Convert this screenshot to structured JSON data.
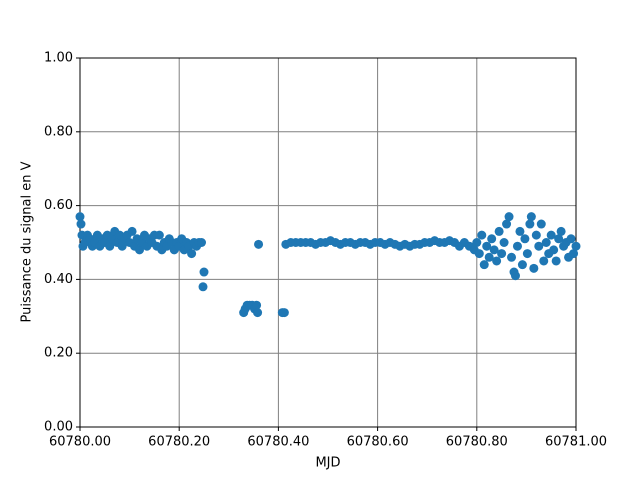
{
  "chart_data": {
    "type": "scatter",
    "xlabel": "MJD",
    "ylabel": "Puissance du signal en V",
    "color": "#1f77b4",
    "grid": true,
    "xlim": [
      60780,
      60781
    ],
    "ylim": [
      0,
      1
    ],
    "xticks": [
      {
        "value": 60780,
        "label": "60780.00"
      },
      {
        "value": 60780.2,
        "label": "60780.20"
      },
      {
        "value": 60780.4,
        "label": "60780.40"
      },
      {
        "value": 60780.6,
        "label": "60780.60"
      },
      {
        "value": 60780.8,
        "label": "60780.80"
      },
      {
        "value": 60781,
        "label": "60781.00"
      }
    ],
    "yticks": [
      {
        "value": 0,
        "label": "0.00"
      },
      {
        "value": 0.2,
        "label": "0.20"
      },
      {
        "value": 0.4,
        "label": "0.40"
      },
      {
        "value": 0.6,
        "label": "0.60"
      },
      {
        "value": 0.8,
        "label": "0.80"
      },
      {
        "value": 1,
        "label": "1.00"
      }
    ],
    "x": [
      60780.0,
      60780.002,
      60780.004,
      60780.006,
      60780.01,
      60780.015,
      60780.02,
      60780.025,
      60780.03,
      60780.035,
      60780.04,
      60780.045,
      60780.05,
      60780.055,
      60780.06,
      60780.065,
      60780.07,
      60780.075,
      60780.08,
      60780.085,
      60780.09,
      60780.095,
      60780.1,
      60780.105,
      60780.11,
      60780.115,
      60780.12,
      60780.125,
      60780.13,
      60780.135,
      60780.14,
      60780.145,
      60780.15,
      60780.155,
      60780.16,
      60780.165,
      60780.17,
      60780.175,
      60780.18,
      60780.185,
      60780.19,
      60780.195,
      60780.2,
      60780.205,
      60780.21,
      60780.215,
      60780.22,
      60780.225,
      60780.23,
      60780.235,
      60780.24,
      60780.245,
      60780.25,
      60780.248,
      60780.33,
      60780.333,
      60780.337,
      60780.342,
      60780.347,
      60780.352,
      60780.356,
      60780.358,
      60780.36,
      60780.408,
      60780.412,
      60780.415,
      60780.425,
      60780.435,
      60780.445,
      60780.455,
      60780.465,
      60780.475,
      60780.485,
      60780.495,
      60780.505,
      60780.515,
      60780.525,
      60780.535,
      60780.545,
      60780.555,
      60780.565,
      60780.575,
      60780.585,
      60780.595,
      60780.605,
      60780.615,
      60780.625,
      60780.635,
      60780.645,
      60780.655,
      60780.665,
      60780.675,
      60780.685,
      60780.695,
      60780.705,
      60780.715,
      60780.725,
      60780.735,
      60780.745,
      60780.755,
      60780.765,
      60780.775,
      60780.785,
      60780.795,
      60780.8,
      60780.805,
      60780.81,
      60780.815,
      60780.82,
      60780.825,
      60780.83,
      60780.835,
      60780.84,
      60780.845,
      60780.85,
      60780.855,
      60780.86,
      60780.865,
      60780.87,
      60780.875,
      60780.878,
      60780.882,
      60780.887,
      60780.892,
      60780.897,
      60780.902,
      60780.907,
      60780.91,
      60780.915,
      60780.92,
      60780.925,
      60780.93,
      60780.935,
      60780.94,
      60780.945,
      60780.95,
      60780.955,
      60780.96,
      60780.965,
      60780.97,
      60780.975,
      60780.98,
      60780.985,
      60780.99,
      60780.995,
      60781.0
    ],
    "values": [
      0.57,
      0.55,
      0.52,
      0.49,
      0.5,
      0.52,
      0.51,
      0.49,
      0.5,
      0.52,
      0.49,
      0.51,
      0.5,
      0.52,
      0.49,
      0.51,
      0.53,
      0.5,
      0.52,
      0.49,
      0.51,
      0.52,
      0.5,
      0.53,
      0.49,
      0.51,
      0.48,
      0.5,
      0.52,
      0.49,
      0.51,
      0.5,
      0.52,
      0.49,
      0.52,
      0.48,
      0.5,
      0.49,
      0.51,
      0.5,
      0.48,
      0.5,
      0.49,
      0.51,
      0.48,
      0.5,
      0.49,
      0.47,
      0.5,
      0.49,
      0.5,
      0.5,
      0.42,
      0.38,
      0.31,
      0.32,
      0.33,
      0.33,
      0.33,
      0.32,
      0.33,
      0.31,
      0.495,
      0.31,
      0.31,
      0.495,
      0.5,
      0.5,
      0.5,
      0.5,
      0.5,
      0.495,
      0.5,
      0.5,
      0.505,
      0.5,
      0.495,
      0.5,
      0.5,
      0.495,
      0.5,
      0.5,
      0.495,
      0.5,
      0.5,
      0.495,
      0.5,
      0.495,
      0.49,
      0.495,
      0.49,
      0.495,
      0.495,
      0.5,
      0.5,
      0.505,
      0.5,
      0.5,
      0.505,
      0.5,
      0.49,
      0.5,
      0.49,
      0.48,
      0.5,
      0.47,
      0.52,
      0.44,
      0.49,
      0.46,
      0.51,
      0.48,
      0.45,
      0.53,
      0.47,
      0.5,
      0.55,
      0.57,
      0.46,
      0.42,
      0.41,
      0.49,
      0.53,
      0.44,
      0.51,
      0.47,
      0.55,
      0.57,
      0.43,
      0.52,
      0.49,
      0.55,
      0.45,
      0.5,
      0.47,
      0.52,
      0.48,
      0.45,
      0.51,
      0.53,
      0.49,
      0.5,
      0.46,
      0.51,
      0.47,
      0.49
    ]
  }
}
